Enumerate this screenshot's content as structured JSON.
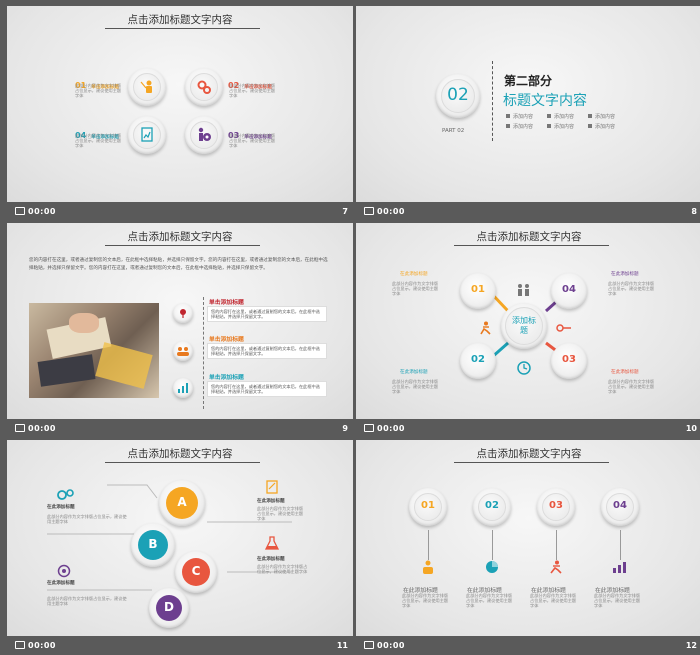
{
  "common_title": "点击添加标题文字内容",
  "footer_time": "00:00",
  "placeholder_text": "单击添加标题",
  "slide7": {
    "num": "7",
    "items": [
      {
        "no": "01",
        "color": "#f5a623"
      },
      {
        "no": "02",
        "color": "#e8563f"
      },
      {
        "no": "04",
        "color": "#1ba1b6"
      },
      {
        "no": "03",
        "color": "#6d3f8f"
      }
    ]
  },
  "slide8": {
    "num": "8",
    "big_no": "02",
    "part": "PART 02",
    "heading": "第二部分",
    "subheading": "标题文字内容",
    "bullet": "添加内容"
  },
  "slide9": {
    "num": "9",
    "para": "您的内容打在这里，或者通过复制您的文本后，在此框中选择粘贴，并选择只保留文字。您的内容打在这里，或者通过复制您的文本后，在此框中选择粘贴，并选择只保留文字。您的内容打在这里，或者通过复制您的文本后，在此框中选择粘贴，并选择只保留文字。",
    "items": [
      {
        "head": "单击添加标题",
        "color": "#c0252e",
        "body": "您的内容打在这里，或者通过复制您的文本后，在此框中选择粘贴，并选择只保留文字。"
      },
      {
        "head": "单击添加标题",
        "color": "#e8791e",
        "body": "您的内容打在这里，或者通过复制您的文本后，在此框中选择粘贴，并选择只保留文字。"
      },
      {
        "head": "单击添加标题",
        "color": "#1ba1b6",
        "body": "您的内容打在这里，或者通过复制您的文本后，在此框中选择粘贴，并选择只保留文字。"
      }
    ]
  },
  "slide10": {
    "num": "10",
    "center": "添加标题",
    "label": "在此添加标题",
    "items": [
      {
        "no": "01",
        "color": "#f5a623"
      },
      {
        "no": "04",
        "color": "#6d3f8f"
      },
      {
        "no": "02",
        "color": "#1ba1b6"
      },
      {
        "no": "03",
        "color": "#e8563f"
      }
    ]
  },
  "slide11": {
    "num": "11",
    "label": "在此添加标题",
    "items": [
      {
        "letter": "A",
        "color": "#f5a623"
      },
      {
        "letter": "B",
        "color": "#1ba1b6"
      },
      {
        "letter": "C",
        "color": "#e8563f"
      },
      {
        "letter": "D",
        "color": "#6d3f8f"
      }
    ]
  },
  "slide12": {
    "num": "12",
    "label": "在此添加标题",
    "items": [
      {
        "no": "01",
        "color": "#f5a623"
      },
      {
        "no": "02",
        "color": "#1ba1b6"
      },
      {
        "no": "03",
        "color": "#e8563f"
      },
      {
        "no": "04",
        "color": "#6d3f8f"
      }
    ]
  },
  "lorem": "此部分内容作为文字排版占位显示，建议使用主题字体"
}
